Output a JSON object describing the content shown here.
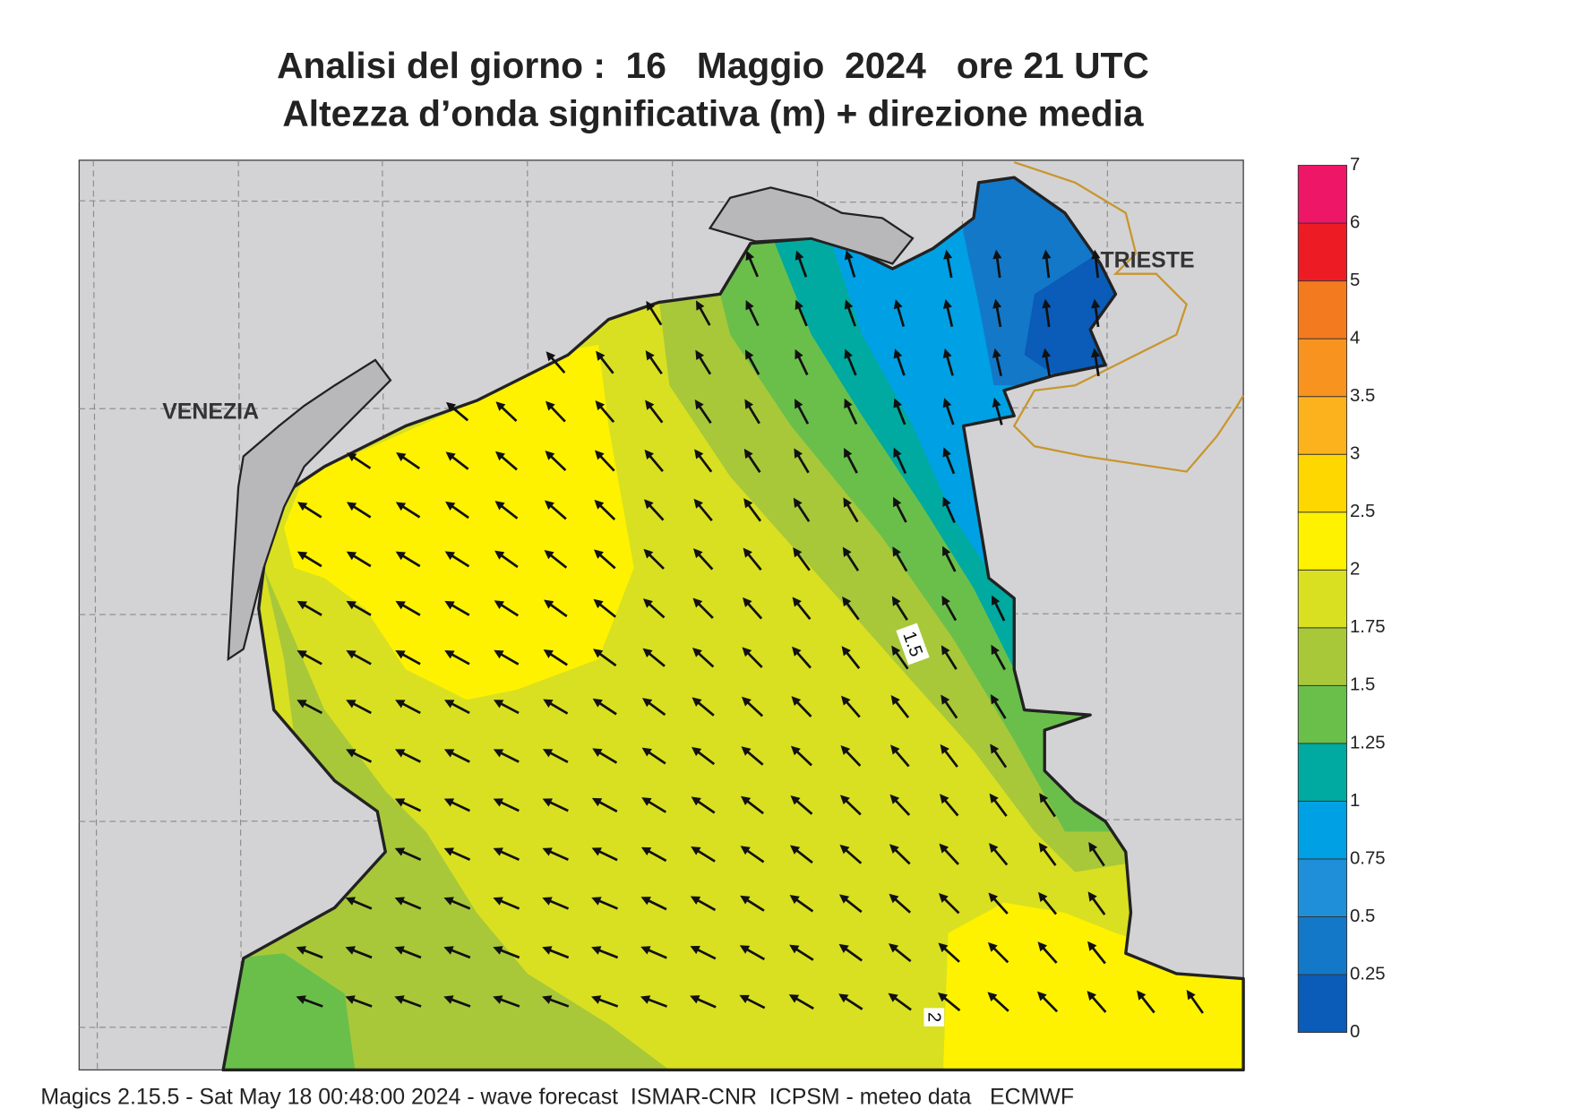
{
  "header": {
    "title": "Analisi del giorno :  16   Maggio  2024   ore 21 UTC",
    "subtitle": "Altezza d’onda significativa (m) + direzione media"
  },
  "map": {
    "places": [
      "VENEZIA",
      "TRIESTE"
    ],
    "contour_labels": [
      "1.5",
      "2"
    ]
  },
  "colorbar": {
    "levels": [
      0,
      0.25,
      0.5,
      0.75,
      1,
      1.25,
      1.5,
      1.75,
      2,
      2.5,
      3,
      3.5,
      4,
      5,
      6,
      7
    ],
    "colors": [
      "#0a5cb8",
      "#1478c8",
      "#1e8fd8",
      "#00a0e4",
      "#00aaa0",
      "#6abf4b",
      "#a8c83a",
      "#d9e021",
      "#fff200",
      "#ffd700",
      "#fbb21c",
      "#f7931e",
      "#f47a20",
      "#ed1c24",
      "#ee1667"
    ]
  },
  "footer": "Magics 2.15.5 - Sat May 18 00:48:00 2024 - wave forecast  ISMAR-CNR  ICPSM - meteo data   ECMWF"
}
